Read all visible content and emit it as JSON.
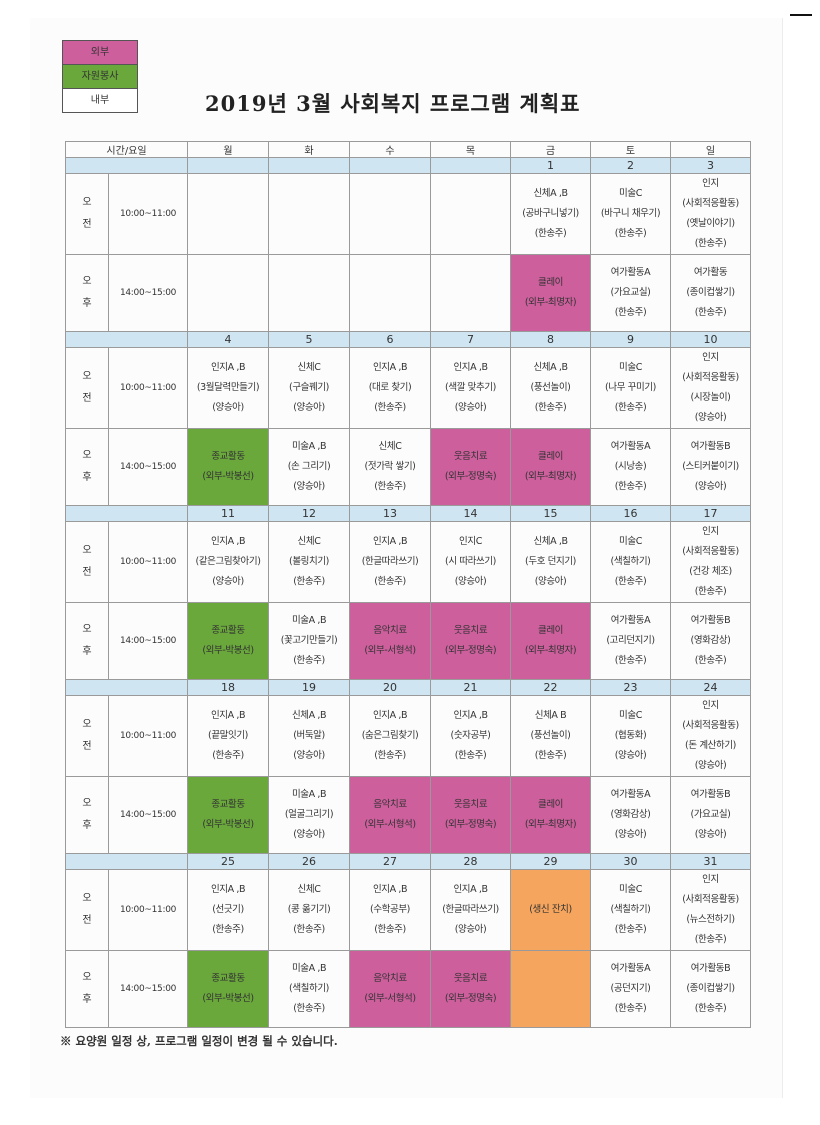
{
  "legend": [
    {
      "label": "외부",
      "color": "#cc5f9c"
    },
    {
      "label": "자원봉사",
      "color": "#6aa83c"
    },
    {
      "label": "내부",
      "color": "#ffffff"
    }
  ],
  "title": "2019년 3월 사회복지 프로그램 계획표",
  "header": {
    "time_day": "시간/요일",
    "days": [
      "월",
      "화",
      "수",
      "목",
      "금",
      "토",
      "일"
    ]
  },
  "periods": {
    "am": [
      "오",
      "전"
    ],
    "pm": [
      "오",
      "후"
    ]
  },
  "times": {
    "am": "10:00~11:00",
    "pm": "14:00~15:00"
  },
  "weeks": [
    {
      "dates": [
        "",
        "",
        "",
        "",
        "1",
        "2",
        "3"
      ],
      "am": [
        null,
        null,
        null,
        null,
        {
          "lines": [
            "신체A ,B",
            "(공바구니넣기)",
            "(한송주)"
          ],
          "type": "internal"
        },
        {
          "lines": [
            "미술C",
            "(바구니 채우기)",
            "(한송주)"
          ],
          "type": "internal"
        },
        {
          "lines": [
            "인지",
            "(사회적응활동)",
            "(옛날이야기)",
            "(한송주)"
          ],
          "type": "internal"
        }
      ],
      "pm": [
        null,
        null,
        null,
        null,
        {
          "lines": [
            "클레이",
            "(외부-최명자)"
          ],
          "type": "external"
        },
        {
          "lines": [
            "여가활동A",
            "(가요교실)",
            "(한송주)"
          ],
          "type": "internal"
        },
        {
          "lines": [
            "여가활동",
            "(종이컵쌓기)",
            "(한송주)"
          ],
          "type": "internal"
        }
      ]
    },
    {
      "dates": [
        "4",
        "5",
        "6",
        "7",
        "8",
        "9",
        "10"
      ],
      "am": [
        {
          "lines": [
            "인지A ,B",
            "(3월달력만들기)",
            "(양승아)"
          ],
          "type": "internal"
        },
        {
          "lines": [
            "신체C",
            "(구슬꿰기)",
            "(양승아)"
          ],
          "type": "internal"
        },
        {
          "lines": [
            "인지A ,B",
            "(대로 찾기)",
            "(한송주)"
          ],
          "type": "internal"
        },
        {
          "lines": [
            "인지A ,B",
            "(색깔 맞추기)",
            "(양승아)"
          ],
          "type": "internal"
        },
        {
          "lines": [
            "신체A ,B",
            "(풍선놀이)",
            "(한송주)"
          ],
          "type": "internal"
        },
        {
          "lines": [
            "미술C",
            "(나무 꾸미기)",
            "(한송주)"
          ],
          "type": "internal"
        },
        {
          "lines": [
            "인지",
            "(사회적응활동)",
            "(시장놀이)",
            "(양승아)"
          ],
          "type": "internal"
        }
      ],
      "pm": [
        {
          "lines": [
            "종교활동",
            "(외부-박봉선)"
          ],
          "type": "volunteer"
        },
        {
          "lines": [
            "미술A ,B",
            "(손 그리기)",
            "(양승아)"
          ],
          "type": "internal"
        },
        {
          "lines": [
            "신체C",
            "(젓가락 쌓기)",
            "(한송주)"
          ],
          "type": "internal"
        },
        {
          "lines": [
            "웃음치료",
            "(외부-정명숙)"
          ],
          "type": "external"
        },
        {
          "lines": [
            "클레이",
            "(외부-최명자)"
          ],
          "type": "external"
        },
        {
          "lines": [
            "여가활동A",
            "(시낭송)",
            "(한송주)"
          ],
          "type": "internal"
        },
        {
          "lines": [
            "여가활동B",
            "(스티커붙이기)",
            "(양승아)"
          ],
          "type": "internal"
        }
      ]
    },
    {
      "dates": [
        "11",
        "12",
        "13",
        "14",
        "15",
        "16",
        "17"
      ],
      "am": [
        {
          "lines": [
            "인지A ,B",
            "(같은그림찾아기)",
            "(양승아)"
          ],
          "type": "internal"
        },
        {
          "lines": [
            "신체C",
            "(볼링치기)",
            "(한송주)"
          ],
          "type": "internal"
        },
        {
          "lines": [
            "인지A ,B",
            "(한글따라쓰기)",
            "(한송주)"
          ],
          "type": "internal"
        },
        {
          "lines": [
            "인지C",
            "(시 따라쓰기)",
            "(양승아)"
          ],
          "type": "internal"
        },
        {
          "lines": [
            "신체A ,B",
            "(두호 던지기)",
            "(양승아)"
          ],
          "type": "internal"
        },
        {
          "lines": [
            "미술C",
            "(색칠하기)",
            "(한송주)"
          ],
          "type": "internal"
        },
        {
          "lines": [
            "인지",
            "(사회적응활동)",
            "(건강 체조)",
            "(한송주)"
          ],
          "type": "internal"
        }
      ],
      "pm": [
        {
          "lines": [
            "종교활동",
            "(외부-박봉선)"
          ],
          "type": "volunteer"
        },
        {
          "lines": [
            "미술A ,B",
            "(꽃고기만들기)",
            "(한송주)"
          ],
          "type": "internal"
        },
        {
          "lines": [
            "음악치료",
            "(외부-서형석)"
          ],
          "type": "external"
        },
        {
          "lines": [
            "웃음치료",
            "(외부-정명숙)"
          ],
          "type": "external"
        },
        {
          "lines": [
            "클레이",
            "(외부-최명자)"
          ],
          "type": "external"
        },
        {
          "lines": [
            "여가활동A",
            "(고리던지기)",
            "(한송주)"
          ],
          "type": "internal"
        },
        {
          "lines": [
            "여가활동B",
            "(영화감상)",
            "(한송주)"
          ],
          "type": "internal"
        }
      ]
    },
    {
      "dates": [
        "18",
        "19",
        "20",
        "21",
        "22",
        "23",
        "24"
      ],
      "am": [
        {
          "lines": [
            "인지A ,B",
            "(끝말잇기)",
            "(한송주)"
          ],
          "type": "internal"
        },
        {
          "lines": [
            "신체A ,B",
            "(버둑알)",
            "(양승아)"
          ],
          "type": "internal"
        },
        {
          "lines": [
            "인지A ,B",
            "(숨은그림찾기)",
            "(한송주)"
          ],
          "type": "internal"
        },
        {
          "lines": [
            "인지A ,B",
            "(숫자공부)",
            "(한송주)"
          ],
          "type": "internal"
        },
        {
          "lines": [
            "신체A B",
            "(풍선놀이)",
            "(한송주)"
          ],
          "type": "internal"
        },
        {
          "lines": [
            "미술C",
            "(협동화)",
            "(양승아)"
          ],
          "type": "internal"
        },
        {
          "lines": [
            "인지",
            "(사회적응활동)",
            "(돈 계산하기)",
            "(양승아)"
          ],
          "type": "internal"
        }
      ],
      "pm": [
        {
          "lines": [
            "종교활동",
            "(외부-박봉선)"
          ],
          "type": "volunteer"
        },
        {
          "lines": [
            "미술A ,B",
            "(얼굴그리기)",
            "(양승아)"
          ],
          "type": "internal"
        },
        {
          "lines": [
            "음악치료",
            "(외부-서형석)"
          ],
          "type": "external"
        },
        {
          "lines": [
            "웃음치료",
            "(외부-정명숙)"
          ],
          "type": "external"
        },
        {
          "lines": [
            "클레이",
            "(외부-최명자)"
          ],
          "type": "external"
        },
        {
          "lines": [
            "여가활동A",
            "(영화감상)",
            "(양승아)"
          ],
          "type": "internal"
        },
        {
          "lines": [
            "여가활동B",
            "(가요교실)",
            "(양승아)"
          ],
          "type": "internal"
        }
      ]
    },
    {
      "dates": [
        "25",
        "26",
        "27",
        "28",
        "29",
        "30",
        "31"
      ],
      "am": [
        {
          "lines": [
            "인지A ,B",
            "(선긋기)",
            "(한송주)"
          ],
          "type": "internal"
        },
        {
          "lines": [
            "신체C",
            "(콩 옮기기)",
            "(한송주)"
          ],
          "type": "internal"
        },
        {
          "lines": [
            "인지A ,B",
            "(수학공부)",
            "(한송주)"
          ],
          "type": "internal"
        },
        {
          "lines": [
            "인지A ,B",
            "(한글따라쓰기)",
            "(양승아)"
          ],
          "type": "internal"
        },
        {
          "lines": [
            "(생신 잔치)"
          ],
          "type": "event"
        },
        {
          "lines": [
            "미술C",
            "(색칠하기)",
            "(한송주)"
          ],
          "type": "internal"
        },
        {
          "lines": [
            "인지",
            "(사회적응활동)",
            "(뉴스전하기)",
            "(한송주)"
          ],
          "type": "internal"
        }
      ],
      "pm": [
        {
          "lines": [
            "종교활동",
            "(외부-박봉선)"
          ],
          "type": "volunteer"
        },
        {
          "lines": [
            "미술A ,B",
            "(색칠하기)",
            "(한송주)"
          ],
          "type": "internal"
        },
        {
          "lines": [
            "음악치료",
            "(외부-서형석)"
          ],
          "type": "external"
        },
        {
          "lines": [
            "웃음치료",
            "(외부-정명숙)"
          ],
          "type": "external"
        },
        {
          "lines": [],
          "type": "event"
        },
        {
          "lines": [
            "여가활동A",
            "(공던지기)",
            "(한송주)"
          ],
          "type": "internal"
        },
        {
          "lines": [
            "여가활동B",
            "(종이컵쌓기)",
            "(한송주)"
          ],
          "type": "internal"
        }
      ]
    }
  ],
  "footnote": "※ 요양원 일정 상, 프로그램 일정이 변경 될 수 있습니다.",
  "colors": {
    "external": "#cc5f9c",
    "volunteer": "#6aa83c",
    "event": "#f5a55d",
    "date_row": "#cfe5f2"
  }
}
